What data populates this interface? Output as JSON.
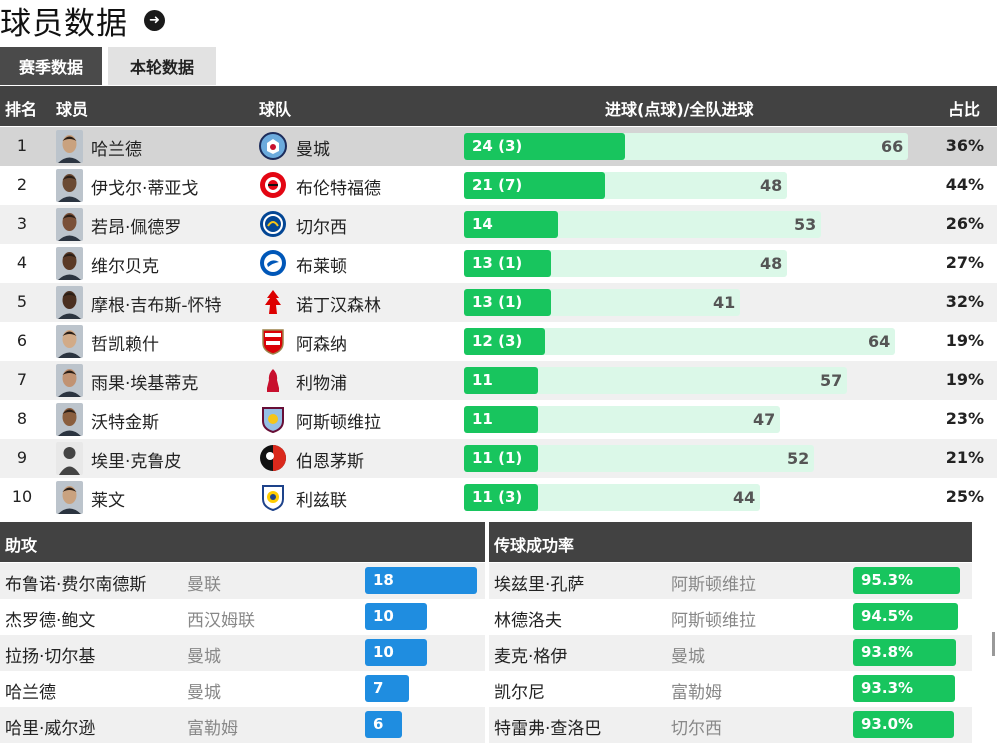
{
  "title": "球员数据",
  "tabs": [
    "赛季数据",
    "本轮数据"
  ],
  "scorers": {
    "headers": {
      "rank": "排名",
      "player": "球员",
      "team": "球队",
      "goals": "进球(点球)/全队进球",
      "pct": "占比"
    },
    "rows": [
      {
        "rank": "1",
        "player": "哈兰德",
        "team": "曼城",
        "goals": "24 (3)",
        "goals_value": 24,
        "team_total": 66,
        "team_total_label": "66",
        "pct": "36%"
      },
      {
        "rank": "2",
        "player": "伊戈尔·蒂亚戈",
        "team": "布伦特福德",
        "goals": "21 (7)",
        "goals_value": 21,
        "team_total": 48,
        "team_total_label": "48",
        "pct": "44%"
      },
      {
        "rank": "3",
        "player": "若昂·佩德罗",
        "team": "切尔西",
        "goals": "14",
        "goals_value": 14,
        "team_total": 53,
        "team_total_label": "53",
        "pct": "26%"
      },
      {
        "rank": "4",
        "player": "维尔贝克",
        "team": "布莱顿",
        "goals": "13 (1)",
        "goals_value": 13,
        "team_total": 48,
        "team_total_label": "48",
        "pct": "27%"
      },
      {
        "rank": "5",
        "player": "摩根·吉布斯-怀特",
        "team": "诺丁汉森林",
        "goals": "13 (1)",
        "goals_value": 13,
        "team_total": 41,
        "team_total_label": "41",
        "pct": "32%"
      },
      {
        "rank": "6",
        "player": "哲凯赖什",
        "team": "阿森纳",
        "goals": "12 (3)",
        "goals_value": 12,
        "team_total": 64,
        "team_total_label": "64",
        "pct": "19%"
      },
      {
        "rank": "7",
        "player": "雨果·埃基蒂克",
        "team": "利物浦",
        "goals": "11",
        "goals_value": 11,
        "team_total": 57,
        "team_total_label": "57",
        "pct": "19%"
      },
      {
        "rank": "8",
        "player": "沃特金斯",
        "team": "阿斯顿维拉",
        "goals": "11",
        "goals_value": 11,
        "team_total": 47,
        "team_total_label": "47",
        "pct": "23%"
      },
      {
        "rank": "9",
        "player": "埃里·克鲁皮",
        "team": "伯恩茅斯",
        "goals": "11 (1)",
        "goals_value": 11,
        "team_total": 52,
        "team_total_label": "52",
        "pct": "21%"
      },
      {
        "rank": "10",
        "player": "莱文",
        "team": "利兹联",
        "goals": "11 (3)",
        "goals_value": 11,
        "team_total": 44,
        "team_total_label": "44",
        "pct": "25%"
      }
    ]
  },
  "assists": {
    "title": "助攻",
    "rows": [
      {
        "player": "布鲁诺·费尔南德斯",
        "team": "曼联",
        "value": "18",
        "num": 18
      },
      {
        "player": "杰罗德·鲍文",
        "team": "西汉姆联",
        "value": "10",
        "num": 10
      },
      {
        "player": "拉扬·切尔基",
        "team": "曼城",
        "value": "10",
        "num": 10
      },
      {
        "player": "哈兰德",
        "team": "曼城",
        "value": "7",
        "num": 7
      },
      {
        "player": "哈里·威尔逊",
        "team": "富勒姆",
        "value": "6",
        "num": 6
      }
    ]
  },
  "passing": {
    "title": "传球成功率",
    "rows": [
      {
        "player": "埃兹里·孔萨",
        "team": "阿斯顿维拉",
        "value": "95.3%",
        "num": 95.3
      },
      {
        "player": "林德洛夫",
        "team": "阿斯顿维拉",
        "value": "94.5%",
        "num": 94.5
      },
      {
        "player": "麦克·格伊",
        "team": "曼城",
        "value": "93.8%",
        "num": 93.8
      },
      {
        "player": "凯尔尼",
        "team": "富勒姆",
        "value": "93.3%",
        "num": 93.3
      },
      {
        "player": "特雷弗·查洛巴",
        "team": "切尔西",
        "value": "93.0%",
        "num": 93.0
      }
    ]
  },
  "colors": {
    "goal_bar": "#18c55e",
    "goal_bar_bg": "#dbf8e8",
    "assist_bar": "#1f8de0",
    "header": "#424242"
  },
  "icons": {
    "title_action": "arrow-right-circle-icon"
  }
}
